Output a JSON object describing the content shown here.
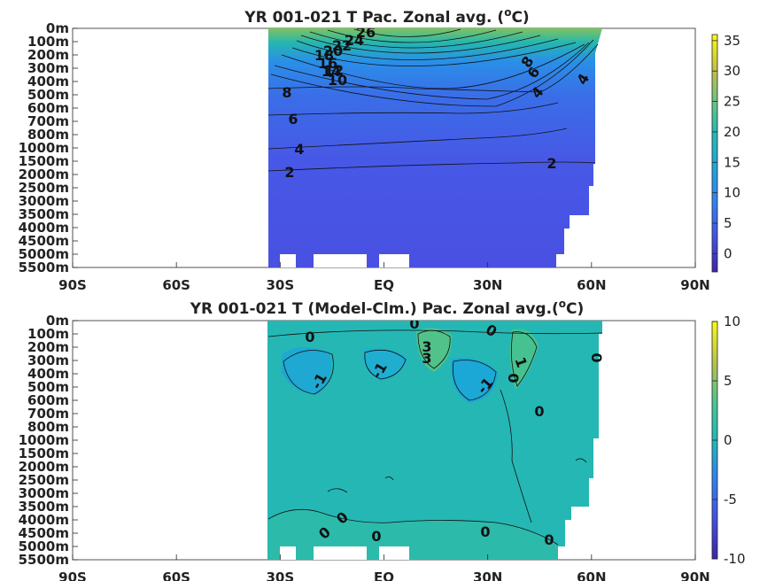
{
  "chart_data": [
    {
      "type": "contour",
      "title_main": "YR 001-021 T Pac. Zonal avg. (",
      "title_unit_sup": "o",
      "title_unit": "C)",
      "x_ticks": [
        "90S",
        "60S",
        "30S",
        "EQ",
        "30N",
        "60N",
        "90N"
      ],
      "y_ticks": [
        "0m",
        "100m",
        "200m",
        "300m",
        "400m",
        "500m",
        "600m",
        "700m",
        "800m",
        "1000m",
        "1500m",
        "2000m",
        "2500m",
        "3000m",
        "3500m",
        "4000m",
        "4500m",
        "5000m",
        "5500m"
      ],
      "colorbar_ticks": [
        "35",
        "30",
        "25",
        "20",
        "15",
        "10",
        "5",
        "0"
      ],
      "colorbar_range": [
        -3,
        36
      ],
      "contour_labels": [
        "26",
        "24",
        "22",
        "20",
        "18",
        "16",
        "14",
        "12",
        "10",
        "8",
        "6",
        "4",
        "2",
        "8",
        "6",
        "4",
        "4",
        "2"
      ]
    },
    {
      "type": "contour",
      "title_main": "YR 001-021 T (Model-Clm.) Pac. Zonal avg.(",
      "title_unit_sup": "o",
      "title_unit": "C)",
      "x_ticks": [
        "90S",
        "60S",
        "30S",
        "EQ",
        "30N",
        "60N",
        "90N"
      ],
      "y_ticks": [
        "0m",
        "100m",
        "200m",
        "300m",
        "400m",
        "500m",
        "600m",
        "700m",
        "800m",
        "1000m",
        "1500m",
        "2000m",
        "2500m",
        "3000m",
        "3500m",
        "4000m",
        "4500m",
        "5000m",
        "5500m"
      ],
      "colorbar_ticks": [
        "10",
        "5",
        "0",
        "-5",
        "-10"
      ],
      "colorbar_range": [
        -10,
        10
      ],
      "contour_labels": [
        "0",
        "0",
        "0",
        "3",
        "3",
        "-1",
        "-1",
        "-1",
        "1",
        "0",
        "0",
        "0",
        "0",
        "0",
        "0",
        "0",
        "0"
      ]
    }
  ]
}
